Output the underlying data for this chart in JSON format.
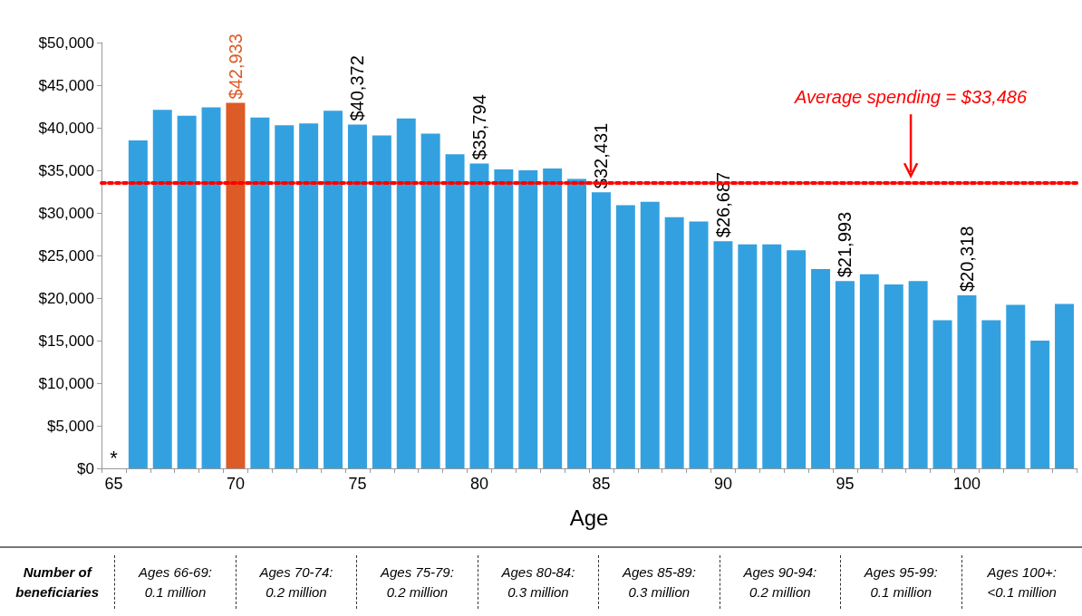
{
  "chart_data": {
    "type": "bar",
    "xlabel": "Age",
    "categories": [
      "65",
      null,
      null,
      null,
      null,
      "70",
      null,
      null,
      null,
      null,
      "75",
      null,
      null,
      null,
      null,
      "80",
      null,
      null,
      null,
      null,
      "85",
      null,
      null,
      null,
      null,
      "90",
      null,
      null,
      null,
      null,
      "95",
      null,
      null,
      null,
      null,
      "100",
      null,
      null,
      null,
      null
    ],
    "values": [
      null,
      38500,
      42100,
      41400,
      42400,
      42933,
      41200,
      40300,
      40500,
      42000,
      40372,
      39100,
      41100,
      39300,
      36900,
      35794,
      35100,
      35000,
      35200,
      34000,
      32431,
      30900,
      31300,
      29500,
      29000,
      26687,
      26300,
      26300,
      25600,
      23400,
      21993,
      22800,
      21600,
      22000,
      17400,
      20318,
      17400,
      19200,
      15000,
      19300
    ],
    "colors": [
      "#33a1e0",
      "#33a1e0",
      "#33a1e0",
      "#33a1e0",
      "#33a1e0",
      "#dd5b26",
      "#33a1e0",
      "#33a1e0",
      "#33a1e0",
      "#33a1e0",
      "#33a1e0",
      "#33a1e0",
      "#33a1e0",
      "#33a1e0",
      "#33a1e0",
      "#33a1e0",
      "#33a1e0",
      "#33a1e0",
      "#33a1e0",
      "#33a1e0",
      "#33a1e0",
      "#33a1e0",
      "#33a1e0",
      "#33a1e0",
      "#33a1e0",
      "#33a1e0",
      "#33a1e0",
      "#33a1e0",
      "#33a1e0",
      "#33a1e0",
      "#33a1e0",
      "#33a1e0",
      "#33a1e0",
      "#33a1e0",
      "#33a1e0",
      "#33a1e0",
      "#33a1e0",
      "#33a1e0",
      "#33a1e0",
      "#33a1e0"
    ],
    "value_labels": [
      null,
      null,
      null,
      null,
      null,
      "$42,933",
      null,
      null,
      null,
      null,
      "$40,372",
      null,
      null,
      null,
      null,
      "$35,794",
      null,
      null,
      null,
      null,
      "$32,431",
      null,
      null,
      null,
      null,
      "$26,687",
      null,
      null,
      null,
      null,
      "$21,993",
      null,
      null,
      null,
      null,
      "$20,318",
      null,
      null,
      null,
      null
    ],
    "ylim": [
      0,
      50000
    ],
    "yticks": [
      {
        "value": 0,
        "label": "$0"
      },
      {
        "value": 5000,
        "label": "$5,000"
      },
      {
        "value": 10000,
        "label": "$10,000"
      },
      {
        "value": 15000,
        "label": "$15,000"
      },
      {
        "value": 20000,
        "label": "$20,000"
      },
      {
        "value": 25000,
        "label": "$25,000"
      },
      {
        "value": 30000,
        "label": "$30,000"
      },
      {
        "value": 35000,
        "label": "$35,000"
      },
      {
        "value": 40000,
        "label": "$40,000"
      },
      {
        "value": 45000,
        "label": "$45,000"
      },
      {
        "value": 50000,
        "label": "$50,000"
      }
    ],
    "ref_lines": [
      {
        "axis": "y",
        "value": 33486,
        "label": "Average spending = $33,486",
        "color": "#ff0000",
        "line_style": "dotted"
      }
    ],
    "annotations": [
      "*",
      "Number of beneficiaries",
      "Ages 66-69: 0.1 million",
      "Ages 70-74: 0.2 million",
      "Ages 75-79: 0.2 million",
      "Ages 80-84: 0.3 million",
      "Ages 85-89: 0.3 million",
      "Ages 90-94: 0.2 million",
      "Ages 95-99: 0.1 million",
      "Ages 100+: <0.1 million"
    ],
    "grid": false
  }
}
